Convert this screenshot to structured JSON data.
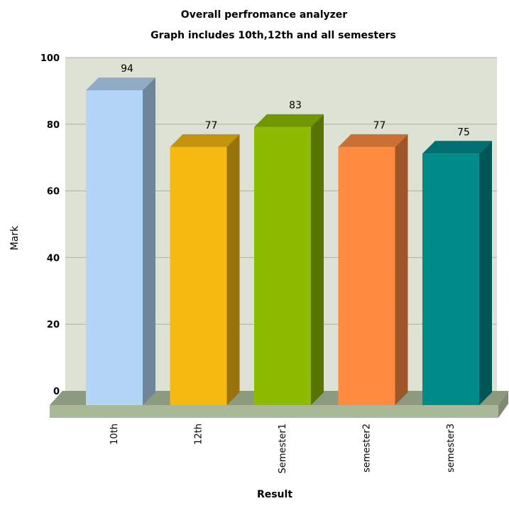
{
  "chart_data": {
    "type": "bar",
    "title": "Overall perfromance analyzer",
    "subtitle": "Graph includes 10th,12th and all semesters",
    "xlabel": "Result",
    "ylabel": "Mark",
    "categories": [
      "10th",
      "12th",
      "Semester1",
      "semester2",
      "semester3"
    ],
    "values": [
      94,
      77,
      83,
      77,
      75
    ],
    "yticks": [
      "0",
      "20",
      "40",
      "60",
      "80",
      "100"
    ],
    "ylim": [
      0,
      100
    ],
    "grid": true,
    "legend": "none",
    "colors": [
      "#b3d6f6",
      "#f5b911",
      "#8dbb00",
      "#ff8b41",
      "#008b8b"
    ],
    "plot_background": "#dde2d5",
    "floor_color": "#aab89a"
  }
}
